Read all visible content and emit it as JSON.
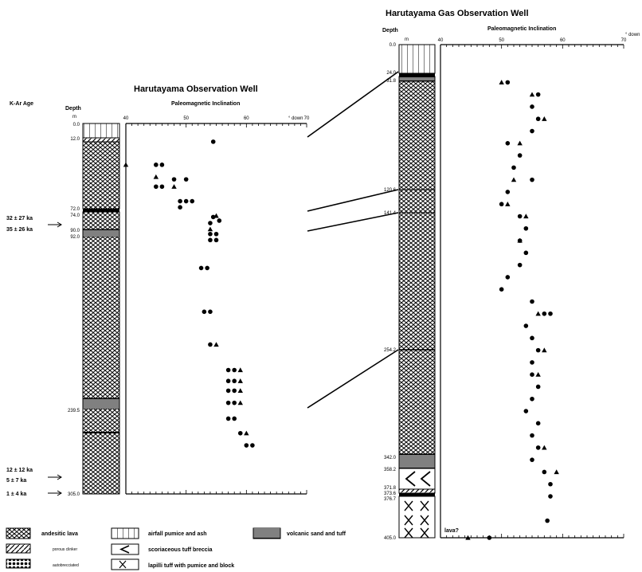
{
  "left_well": {
    "title": "Harutayama Observation Well",
    "kar_label": "K-Ar Age",
    "depth_label": "Depth",
    "unit_label": "m",
    "axis_label": "Paleomagnetic Inclination",
    "axis_unit": "° down",
    "depth_ticks": [
      "0.0",
      "12.0",
      "72.0",
      "74.0",
      "90.0",
      "92.0",
      "239.5",
      "305.0"
    ],
    "ages": [
      "32 ± 27 ka",
      "35 ± 26 ka",
      "12 ± 12 ka",
      "5 ± 7 ka",
      "1 ± 4 ka"
    ]
  },
  "right_well": {
    "title": "Harutayama Gas Observation Well",
    "depth_label": "Depth",
    "unit_label": "m",
    "axis_label": "Paleomagnetic Inclination",
    "axis_unit": "° down",
    "depth_ticks": [
      "0.0",
      "24.0",
      "31.8",
      "120.6",
      "141.4",
      "254.2",
      "342.0",
      "358.2",
      "371.8",
      "373.6",
      "376.7",
      "405.0"
    ],
    "lava_note": "lava?"
  },
  "legend": {
    "andesitic_lava": "andesitic lava",
    "porous_clinker": "porous clinker",
    "autobrecciated": "autobrecciated",
    "airfall": "airfall pumice and ash",
    "scoriaceous": "scoriaceous tuff breccia",
    "lapilli": "lapilli tuff with pumice and block",
    "volcanic_sand": "volcanic sand and tuff"
  },
  "chart_data": [
    {
      "type": "scatter",
      "title": "Harutayama Observation Well",
      "xlabel": "Paleomagnetic Inclination",
      "ylabel": "Depth",
      "xlim": [
        40,
        70
      ],
      "ylim": [
        305.0,
        0.0
      ],
      "x_ticks": [
        40,
        50,
        60,
        70
      ],
      "series": [
        {
          "marker": "circle",
          "points": [
            [
              54.5,
              15
            ],
            [
              45,
              34
            ],
            [
              46,
              34
            ],
            [
              45,
              52
            ],
            [
              46,
              52
            ],
            [
              48,
              46
            ],
            [
              50,
              46
            ],
            [
              49,
              64
            ],
            [
              50,
              64
            ],
            [
              51,
              64
            ],
            [
              49,
              69
            ],
            [
              54.5,
              77
            ],
            [
              55.5,
              80
            ],
            [
              54,
              82
            ],
            [
              54,
              91
            ],
            [
              55,
              91
            ],
            [
              54,
              96
            ],
            [
              55,
              96
            ],
            [
              52.5,
              119
            ],
            [
              53.5,
              119
            ],
            [
              53,
              155
            ],
            [
              54,
              155
            ],
            [
              54,
              182
            ],
            [
              57,
              203
            ],
            [
              58,
              203
            ],
            [
              57,
              212
            ],
            [
              58,
              212
            ],
            [
              57,
              220
            ],
            [
              58,
              220
            ],
            [
              57,
              230
            ],
            [
              58,
              230
            ],
            [
              57,
              243
            ],
            [
              58,
              243
            ],
            [
              59,
              255
            ],
            [
              60,
              265
            ],
            [
              61,
              265
            ]
          ]
        },
        {
          "marker": "triangle",
          "points": [
            [
              40,
              34
            ],
            [
              45,
              44
            ],
            [
              48,
              52
            ],
            [
              55,
              76
            ],
            [
              54,
              87
            ],
            [
              55,
              182
            ],
            [
              59,
              203
            ],
            [
              59,
              212
            ],
            [
              59,
              220
            ],
            [
              59,
              230
            ],
            [
              60,
              255
            ]
          ]
        }
      ]
    },
    {
      "type": "scatter",
      "title": "Harutayama Gas Observation Well",
      "xlabel": "Paleomagnetic Inclination",
      "ylabel": "Depth",
      "xlim": [
        40,
        70
      ],
      "ylim": [
        405.0,
        0.0
      ],
      "x_ticks": [
        40,
        50,
        60,
        70
      ],
      "series": [
        {
          "marker": "circle",
          "points": [
            [
              51,
              31
            ],
            [
              56,
              41
            ],
            [
              55,
              51
            ],
            [
              56,
              61
            ],
            [
              55,
              71
            ],
            [
              51,
              81
            ],
            [
              53,
              91
            ],
            [
              52,
              101
            ],
            [
              55,
              111
            ],
            [
              51,
              121
            ],
            [
              50,
              131
            ],
            [
              53,
              141
            ],
            [
              54,
              151
            ],
            [
              53,
              161
            ],
            [
              54,
              171
            ],
            [
              53,
              181
            ],
            [
              51,
              191
            ],
            [
              50,
              201
            ],
            [
              55,
              211
            ],
            [
              57,
              221
            ],
            [
              58,
              221
            ],
            [
              54,
              231
            ],
            [
              55,
              241
            ],
            [
              56,
              251
            ],
            [
              55,
              261
            ],
            [
              55,
              271
            ],
            [
              56,
              281
            ],
            [
              55,
              291
            ],
            [
              54,
              301
            ],
            [
              56,
              311
            ],
            [
              55,
              321
            ],
            [
              56,
              331
            ],
            [
              55,
              341
            ],
            [
              57,
              351
            ],
            [
              58,
              361
            ],
            [
              58,
              371
            ],
            [
              57.5,
              391
            ],
            [
              48,
              405
            ]
          ]
        },
        {
          "marker": "triangle",
          "points": [
            [
              50,
              31
            ],
            [
              55,
              41
            ],
            [
              57,
              61
            ],
            [
              53,
              81
            ],
            [
              52,
              111
            ],
            [
              51,
              131
            ],
            [
              54,
              141
            ],
            [
              53,
              161
            ],
            [
              56,
              221
            ],
            [
              57,
              251
            ],
            [
              56,
              271
            ],
            [
              57,
              331
            ],
            [
              59,
              351
            ],
            [
              44.5,
              405
            ]
          ]
        }
      ]
    }
  ]
}
